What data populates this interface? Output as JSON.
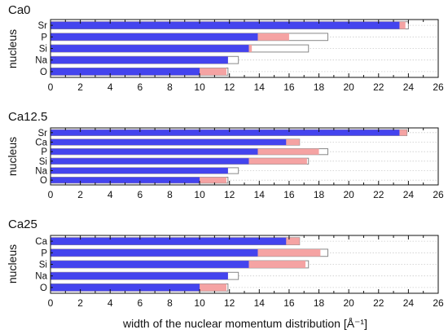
{
  "chart_data": [
    {
      "type": "bar",
      "title": "Ca0",
      "ylabel": "nucleus",
      "xlim": [
        0,
        26
      ],
      "xticks": [
        0,
        2,
        4,
        6,
        8,
        10,
        12,
        14,
        16,
        18,
        20,
        22,
        24,
        26
      ],
      "categories": [
        "Sr",
        "P",
        "Si",
        "Na",
        "O"
      ],
      "series": [
        {
          "color": "#4444ee",
          "values": [
            23.4,
            13.9,
            13.3,
            11.9,
            10.0
          ]
        },
        {
          "color": "#f5a3a3",
          "values": [
            23.8,
            16.0,
            13.5,
            11.9,
            11.8
          ]
        },
        {
          "color": "#ffffff",
          "values": [
            24.0,
            18.6,
            17.3,
            12.6,
            11.9
          ]
        }
      ]
    },
    {
      "type": "bar",
      "title": "Ca12.5",
      "ylabel": "nucleus",
      "xlim": [
        0,
        26
      ],
      "xticks": [
        0,
        2,
        4,
        6,
        8,
        10,
        12,
        14,
        16,
        18,
        20,
        22,
        24,
        26
      ],
      "categories": [
        "Sr",
        "Ca",
        "P",
        "Si",
        "Na",
        "O"
      ],
      "series": [
        {
          "color": "#4444ee",
          "values": [
            23.4,
            15.8,
            13.9,
            13.3,
            11.9,
            10.0
          ]
        },
        {
          "color": "#f5a3a3",
          "values": [
            23.9,
            16.7,
            18.0,
            17.2,
            11.9,
            11.8
          ]
        },
        {
          "color": "#ffffff",
          "values": [
            23.9,
            16.7,
            18.6,
            17.3,
            12.6,
            11.9
          ]
        }
      ]
    },
    {
      "type": "bar",
      "title": "Ca25",
      "ylabel": "nucleus",
      "xlabel": "width of the nuclear momentum distribution [Å⁻¹]",
      "xlim": [
        0,
        26
      ],
      "xticks": [
        0,
        2,
        4,
        6,
        8,
        10,
        12,
        14,
        16,
        18,
        20,
        22,
        24,
        26
      ],
      "categories": [
        "Ca",
        "P",
        "Si",
        "Na",
        "O"
      ],
      "series": [
        {
          "color": "#4444ee",
          "values": [
            15.8,
            13.9,
            13.3,
            11.9,
            10.0
          ]
        },
        {
          "color": "#f5a3a3",
          "values": [
            16.7,
            18.1,
            17.1,
            11.9,
            11.8
          ]
        },
        {
          "color": "#ffffff",
          "values": [
            16.7,
            18.6,
            17.3,
            12.6,
            11.9
          ]
        }
      ]
    }
  ]
}
